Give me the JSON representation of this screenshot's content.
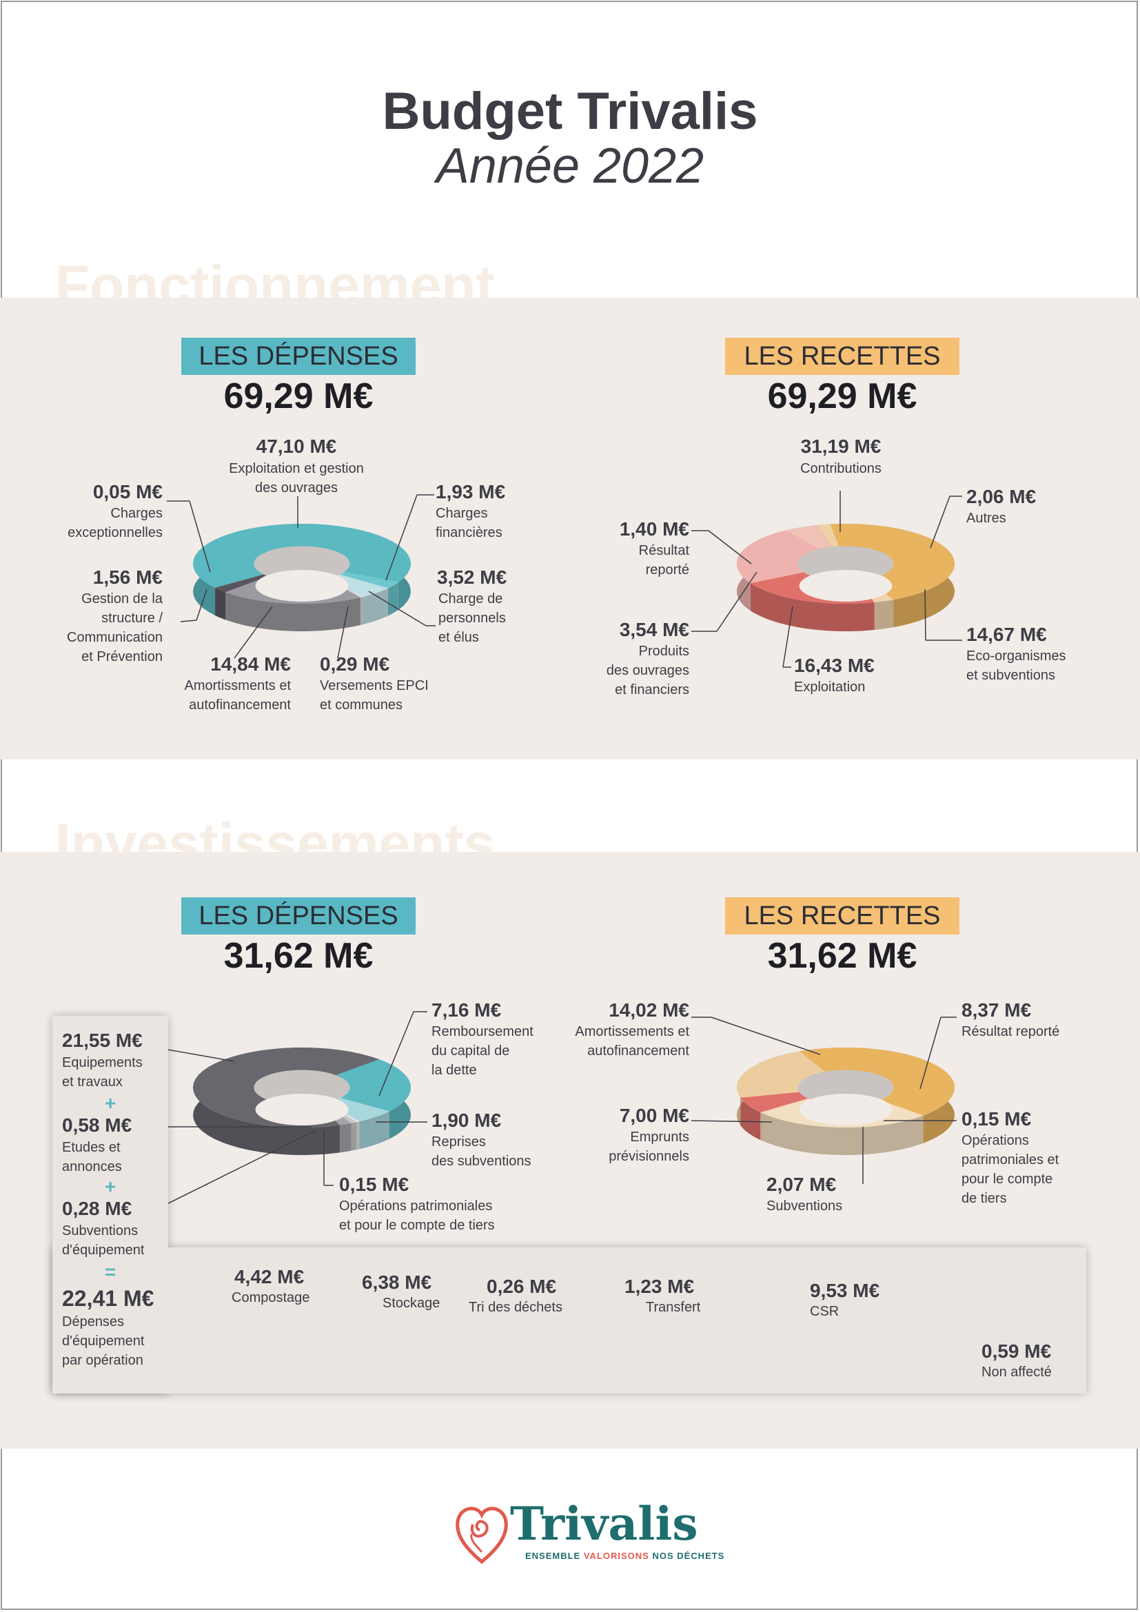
{
  "header": {
    "title": "Budget Trivalis",
    "subtitle": "Année 2022"
  },
  "sections": {
    "fonctionnement": {
      "ghost_title": "Fonctionnement"
    },
    "investissements": {
      "ghost_title": "Investissements"
    }
  },
  "colors": {
    "blue_badge": "#59b8c4",
    "orange_badge": "#f5bf74",
    "band": "#f1ece8",
    "dark_teal": "#1e6d6f"
  },
  "badges": {
    "depenses": "LES DÉPENSES",
    "recettes": "LES RECETTES"
  },
  "chart_data": [
    {
      "type": "pie",
      "id": "fonct_dep",
      "badge": "LES DÉPENSES",
      "total": "69,29 M€",
      "slices": [
        {
          "value_label": "47,10 M€",
          "value": 47.1,
          "label": "Exploitation et gestion\ndes ouvrages",
          "color": "#5bb9c2"
        },
        {
          "value_label": "1,93 M€",
          "value": 1.93,
          "label": "Charges\nfinancières",
          "color": "#6ec6cf"
        },
        {
          "value_label": "3,52 M€",
          "value": 3.52,
          "label": "Charge de\npersonnels\net élus",
          "color": "#bfe0e4"
        },
        {
          "value_label": "0,29 M€",
          "value": 0.29,
          "label": "Versements EPCI\net communes",
          "color": "#d8d8d8"
        },
        {
          "value_label": "14,84 M€",
          "value": 14.84,
          "label": "Amortissments et\nautofinancement",
          "color": "#9b9aa0"
        },
        {
          "value_label": "1,56 M€",
          "value": 1.56,
          "label": "Gestion de la\nstructure /\nCommunication\net Prévention",
          "color": "#57565e"
        },
        {
          "value_label": "0,05 M€",
          "value": 0.05,
          "label": "Charges\nexceptionnelles",
          "color": "#2b2b31"
        }
      ]
    },
    {
      "type": "pie",
      "id": "fonct_rec",
      "badge": "LES RECETTES",
      "total": "69,29 M€",
      "slices": [
        {
          "value_label": "31,19 M€",
          "value": 31.19,
          "label": "Contributions",
          "color": "#e9b45f"
        },
        {
          "value_label": "2,06 M€",
          "value": 2.06,
          "label": "Autres",
          "color": "#f1d3b0"
        },
        {
          "value_label": "14,67 M€",
          "value": 14.67,
          "label": "Eco-organismes\net subventions",
          "color": "#e0716a"
        },
        {
          "value_label": "16,43 M€",
          "value": 16.43,
          "label": "Exploitation",
          "color": "#eeb3ae"
        },
        {
          "value_label": "3,54 M€",
          "value": 3.54,
          "label": "Produits\ndes ouvrages\net financiers",
          "color": "#f0c1b5"
        },
        {
          "value_label": "1,40 M€",
          "value": 1.4,
          "label": "Résultat\nreporté",
          "color": "#ecd2a6"
        }
      ]
    },
    {
      "type": "pie",
      "id": "invest_dep",
      "badge": "LES DÉPENSES",
      "total": "31,62 M€",
      "slices": [
        {
          "value_label": "7,16 M€",
          "value": 7.16,
          "label": "Remboursement\ndu capital de\nla dette",
          "color": "#5bb9c2"
        },
        {
          "value_label": "1,90 M€",
          "value": 1.9,
          "label": "Reprises\ndes subventions",
          "color": "#a8d8de"
        },
        {
          "value_label": "0,15 M€",
          "value": 0.15,
          "label": "Opérations patrimoniales\net pour le compte de tiers",
          "color": "#e4e4e4"
        },
        {
          "value_label": "0,28 M€",
          "value": 0.28,
          "label": "Subventions\nd'équipement",
          "color": "#c7c7c7"
        },
        {
          "value_label": "0,58 M€",
          "value": 0.58,
          "label": "Etudes et\nannonces",
          "color": "#a5a5a8"
        },
        {
          "value_label": "21,55 M€",
          "value": 21.55,
          "label": "Equipements\net travaux",
          "color": "#68676e"
        }
      ]
    },
    {
      "type": "pie",
      "id": "invest_rec",
      "badge": "LES RECETTES",
      "total": "31,62 M€",
      "slices": [
        {
          "value_label": "14,02 M€",
          "value": 14.02,
          "label": "Amortissements et\nautofinancement",
          "color": "#e9b45f"
        },
        {
          "value_label": "8,37 M€",
          "value": 8.37,
          "label": "Résultat reporté",
          "color": "#f3dfc1"
        },
        {
          "value_label": "0,15 M€",
          "value": 0.15,
          "label": "Opérations\npatrimoniales et\npour le compte\nde tiers",
          "color": "#f4cfb8"
        },
        {
          "value_label": "2,07 M€",
          "value": 2.07,
          "label": "Subventions",
          "color": "#e0716a"
        },
        {
          "value_label": "7,00 M€",
          "value": 7.0,
          "label": "Emprunts\nprévisionnels",
          "color": "#edcd9f"
        }
      ]
    },
    {
      "type": "bar",
      "id": "equip_par_operation",
      "stacked": true,
      "categories": [
        "Compostage",
        "Stockage",
        "Tri des déchets",
        "Transfert",
        "CSR",
        "Non affecté"
      ],
      "values": [
        4.42,
        6.38,
        0.26,
        1.23,
        9.53,
        0.59
      ],
      "value_labels": [
        "4,42 M€",
        "6,38 M€",
        "0,26 M€",
        "1,23 M€",
        "9,53 M€",
        "0,59 M€"
      ],
      "colors": [
        "#1f5d5f",
        "#4f7c7f",
        "#aab3b5",
        "#bcc2c3",
        "#5b5a61",
        "#8b8b8d"
      ]
    }
  ],
  "invest_sum": {
    "items": [
      {
        "value": "21,55 M€",
        "label": "Equipements\net travaux"
      },
      {
        "value": "0,58 M€",
        "label": "Etudes et\nannonces"
      },
      {
        "value": "0,28 M€",
        "label": "Subventions\nd'équipement"
      }
    ],
    "plus": "+",
    "equals": "=",
    "total_value": "22,41 M€",
    "total_label": "Dépenses\nd'équipement\npar opération"
  },
  "footer": {
    "logo_text": "Trivalis",
    "tagline_a": "ENSEMBLE ",
    "tagline_b": "VALORISONS",
    "tagline_c": " NOS DÉCHETS",
    "tagline_b_color": "#e05a4e"
  }
}
